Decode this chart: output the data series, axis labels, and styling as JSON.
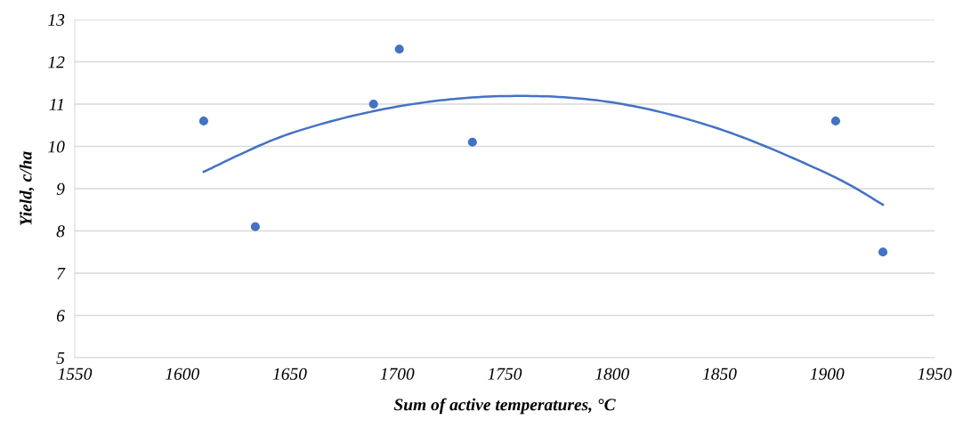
{
  "chart_data": {
    "type": "scatter",
    "xlabel": "Sum of active temperatures, °C",
    "ylabel": "Yield, c/ha",
    "xlim": [
      1550,
      1950
    ],
    "xticks": [
      1550,
      1600,
      1650,
      1700,
      1750,
      1800,
      1850,
      1900,
      1950
    ],
    "ylim": [
      5,
      13
    ],
    "yticks": [
      5,
      6,
      7,
      8,
      9,
      10,
      11,
      12,
      13
    ],
    "grid": "y",
    "series": [
      {
        "color": "#4472c4",
        "marker": "circle",
        "x": [
          1610,
          1634,
          1689,
          1701,
          1735,
          1904,
          1926
        ],
        "values": [
          10.6,
          8.1,
          11.0,
          12.3,
          10.1,
          10.6,
          7.5
        ]
      },
      {
        "type": "line",
        "color": "#4472c4",
        "marker": "none",
        "x": [
          1610,
          1650,
          1700,
          1750,
          1800,
          1850,
          1900,
          1926
        ],
        "values": [
          9.4,
          10.3,
          10.94,
          11.19,
          11.04,
          10.41,
          9.36,
          8.62
        ]
      }
    ]
  }
}
